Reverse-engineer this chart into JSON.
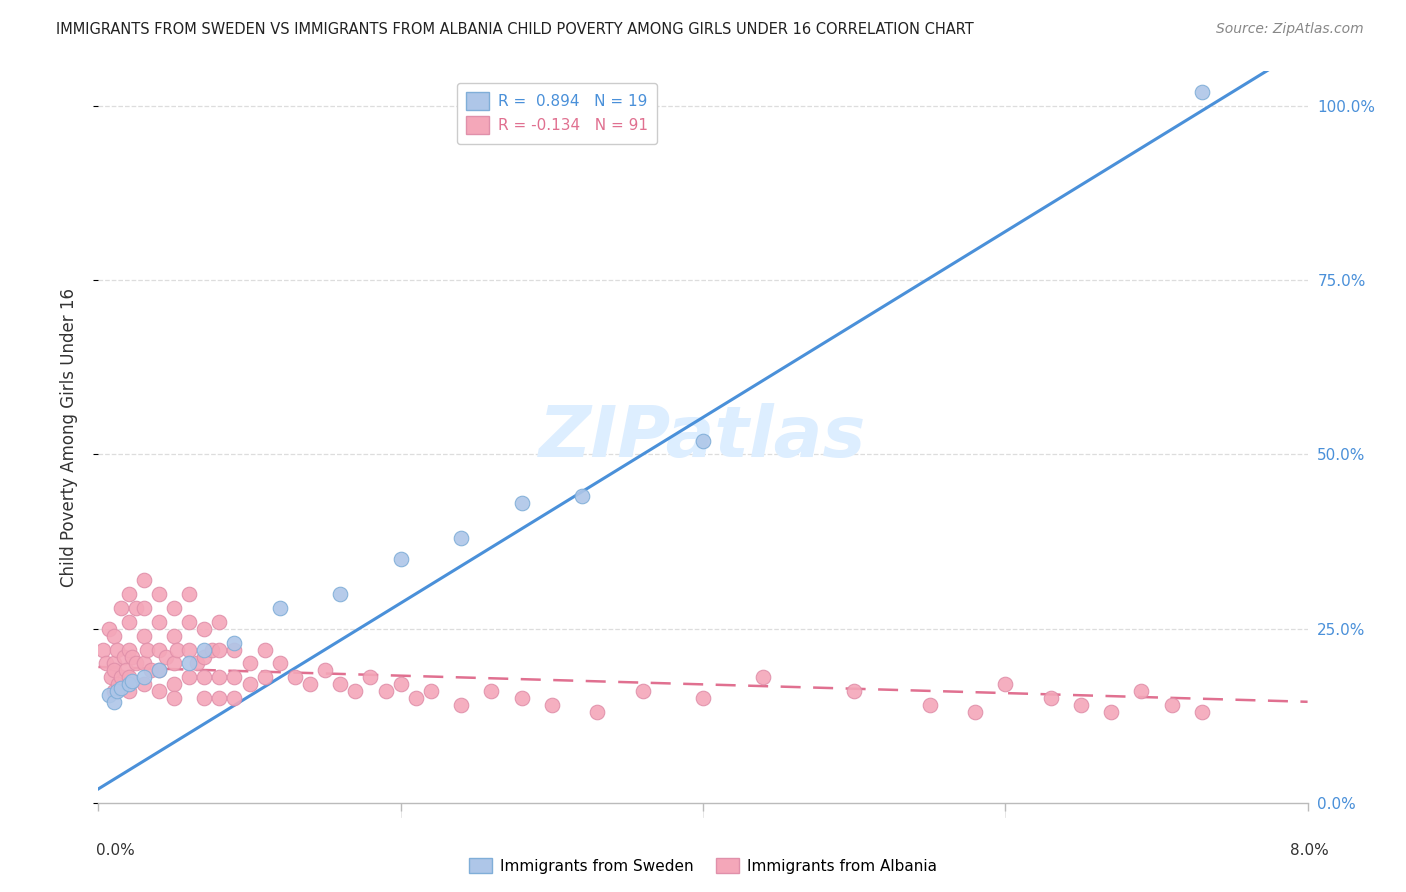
{
  "title": "IMMIGRANTS FROM SWEDEN VS IMMIGRANTS FROM ALBANIA CHILD POVERTY AMONG GIRLS UNDER 16 CORRELATION CHART",
  "source": "Source: ZipAtlas.com",
  "ylabel": "Child Poverty Among Girls Under 16",
  "right_yticks": [
    0.0,
    0.25,
    0.5,
    0.75,
    1.0
  ],
  "right_yticklabels": [
    "0.0%",
    "25.0%",
    "50.0%",
    "75.0%",
    "100.0%"
  ],
  "sweden_R": 0.894,
  "sweden_N": 19,
  "albania_R": -0.134,
  "albania_N": 91,
  "sweden_color": "#aec6e8",
  "sweden_line_color": "#4a90d9",
  "albania_color": "#f4a7b9",
  "albania_line_color": "#e07090",
  "watermark": "ZIPatlas",
  "watermark_color": "#ddeeff",
  "background_color": "#ffffff",
  "grid_color": "#dddddd",
  "xmin": 0.0,
  "xmax": 0.08,
  "ymin": 0.0,
  "ymax": 1.05,
  "sweden_x": [
    0.0007,
    0.001,
    0.0012,
    0.0015,
    0.002,
    0.0022,
    0.003,
    0.004,
    0.006,
    0.007,
    0.009,
    0.012,
    0.016,
    0.02,
    0.024,
    0.028,
    0.032,
    0.04,
    0.073
  ],
  "sweden_y": [
    0.155,
    0.145,
    0.16,
    0.165,
    0.17,
    0.175,
    0.18,
    0.19,
    0.2,
    0.22,
    0.23,
    0.28,
    0.3,
    0.35,
    0.38,
    0.43,
    0.44,
    0.52,
    1.02
  ],
  "albania_x": [
    0.0003,
    0.0005,
    0.0007,
    0.0008,
    0.001,
    0.001,
    0.001,
    0.001,
    0.0012,
    0.0013,
    0.0015,
    0.0015,
    0.0017,
    0.0018,
    0.002,
    0.002,
    0.002,
    0.002,
    0.002,
    0.0022,
    0.0025,
    0.0025,
    0.003,
    0.003,
    0.003,
    0.003,
    0.003,
    0.0032,
    0.0035,
    0.004,
    0.004,
    0.004,
    0.004,
    0.004,
    0.0045,
    0.005,
    0.005,
    0.005,
    0.005,
    0.005,
    0.0052,
    0.006,
    0.006,
    0.006,
    0.006,
    0.0065,
    0.007,
    0.007,
    0.007,
    0.007,
    0.0075,
    0.008,
    0.008,
    0.008,
    0.008,
    0.009,
    0.009,
    0.009,
    0.01,
    0.01,
    0.011,
    0.011,
    0.012,
    0.013,
    0.014,
    0.015,
    0.016,
    0.017,
    0.018,
    0.019,
    0.02,
    0.021,
    0.022,
    0.024,
    0.026,
    0.028,
    0.03,
    0.033,
    0.036,
    0.04,
    0.044,
    0.05,
    0.055,
    0.058,
    0.06,
    0.063,
    0.065,
    0.067,
    0.069,
    0.071,
    0.073
  ],
  "albania_y": [
    0.22,
    0.2,
    0.25,
    0.18,
    0.24,
    0.2,
    0.16,
    0.19,
    0.22,
    0.17,
    0.28,
    0.18,
    0.21,
    0.19,
    0.3,
    0.26,
    0.22,
    0.18,
    0.16,
    0.21,
    0.28,
    0.2,
    0.32,
    0.28,
    0.24,
    0.2,
    0.17,
    0.22,
    0.19,
    0.3,
    0.26,
    0.22,
    0.19,
    0.16,
    0.21,
    0.28,
    0.24,
    0.2,
    0.17,
    0.15,
    0.22,
    0.3,
    0.26,
    0.22,
    0.18,
    0.2,
    0.25,
    0.21,
    0.18,
    0.15,
    0.22,
    0.26,
    0.22,
    0.18,
    0.15,
    0.22,
    0.18,
    0.15,
    0.2,
    0.17,
    0.22,
    0.18,
    0.2,
    0.18,
    0.17,
    0.19,
    0.17,
    0.16,
    0.18,
    0.16,
    0.17,
    0.15,
    0.16,
    0.14,
    0.16,
    0.15,
    0.14,
    0.13,
    0.16,
    0.15,
    0.18,
    0.16,
    0.14,
    0.13,
    0.17,
    0.15,
    0.14,
    0.13,
    0.16,
    0.14,
    0.13
  ]
}
